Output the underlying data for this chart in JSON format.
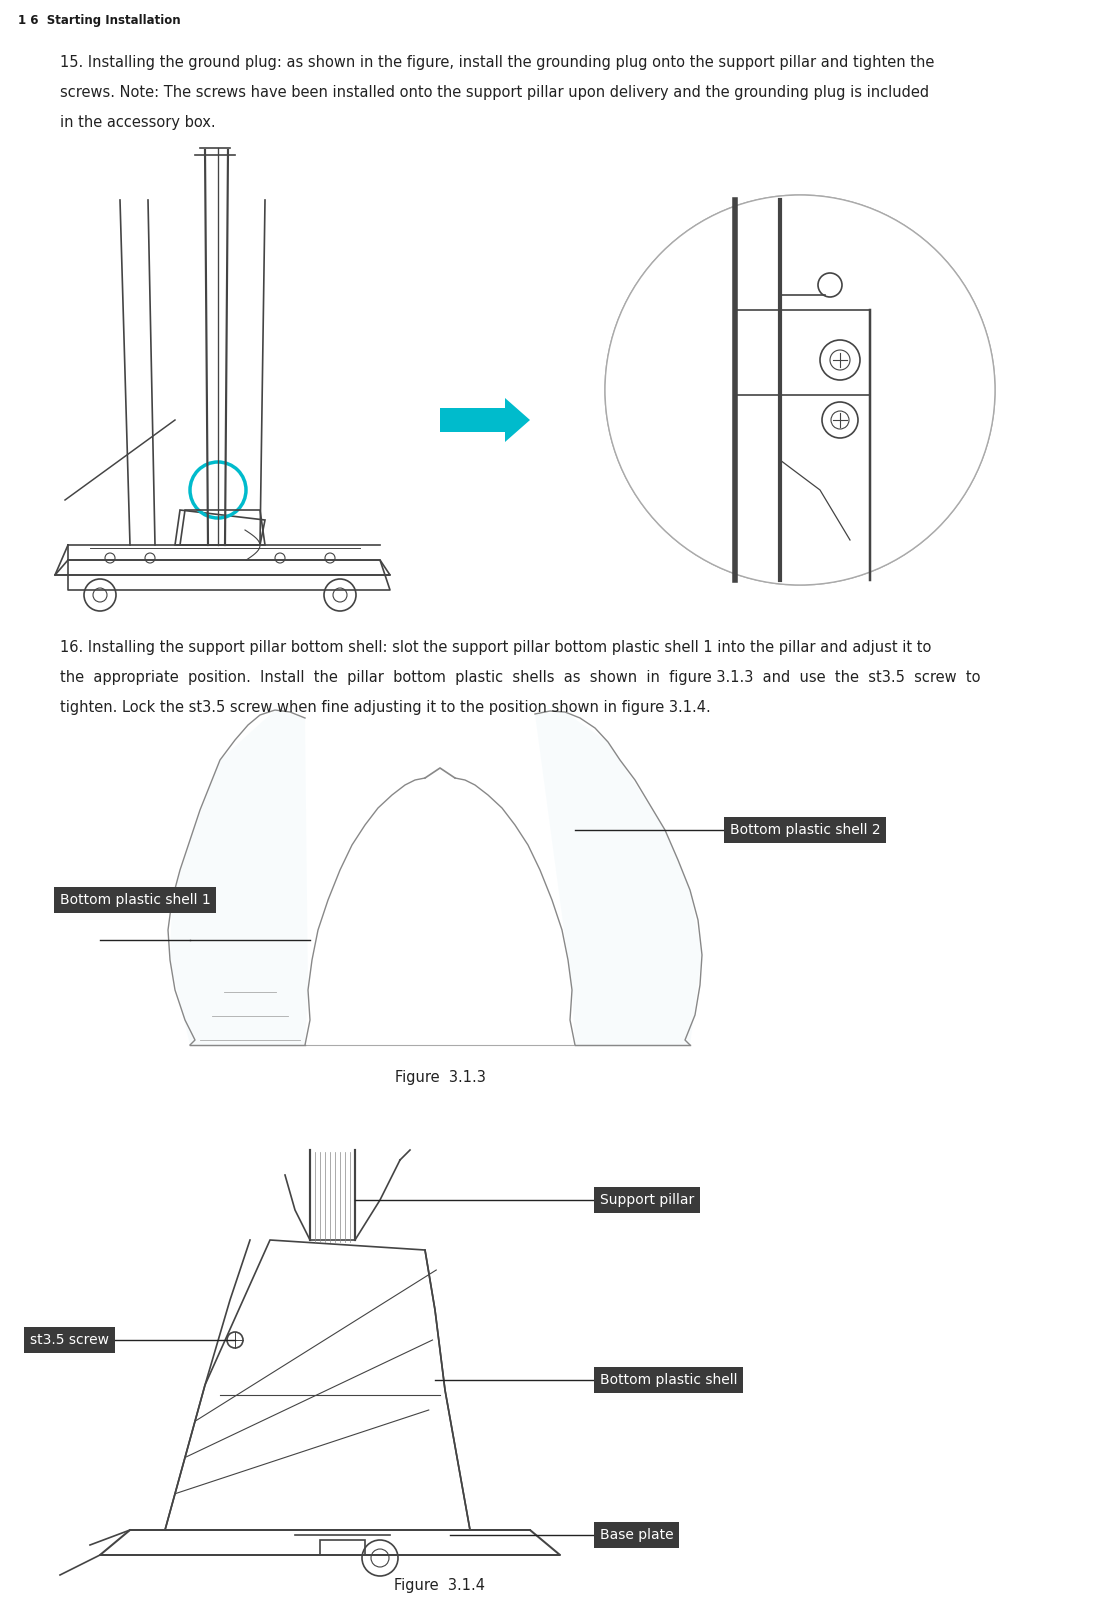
{
  "bg_color": "#ffffff",
  "header_text": "1 6  Starting Installation",
  "header_fontsize": 8.5,
  "para1_lines": [
    "15. Installing the ground plug: as shown in the figure, install the grounding plug onto the support pillar and tighten the",
    "screws. Note: The screws have been installed onto the support pillar upon delivery and the grounding plug is included",
    "in the accessory box."
  ],
  "para1_fontsize": 10.5,
  "para2_lines": [
    "16. Installing the support pillar bottom shell: slot the support pillar bottom plastic shell 1 into the pillar and adjust it to",
    "the  appropriate  position.  Install  the  pillar  bottom  plastic  shells  as  shown  in  figure 3.1.3  and  use  the  st3.5  screw  to",
    "tighten. Lock the st3.5 screw when fine adjusting it to the position shown in figure 3.1.4."
  ],
  "para2_fontsize": 10.5,
  "fig313_caption": "Figure  3.1.3",
  "fig314_caption": "Figure  3.1.4",
  "caption_fontsize": 10.5,
  "label_bg_color": "#3a3a3a",
  "label_text_color": "#ffffff",
  "label_fontsize": 10,
  "line_color": "#333333",
  "sketch_color": "#444444",
  "sketch_lw": 1.2
}
